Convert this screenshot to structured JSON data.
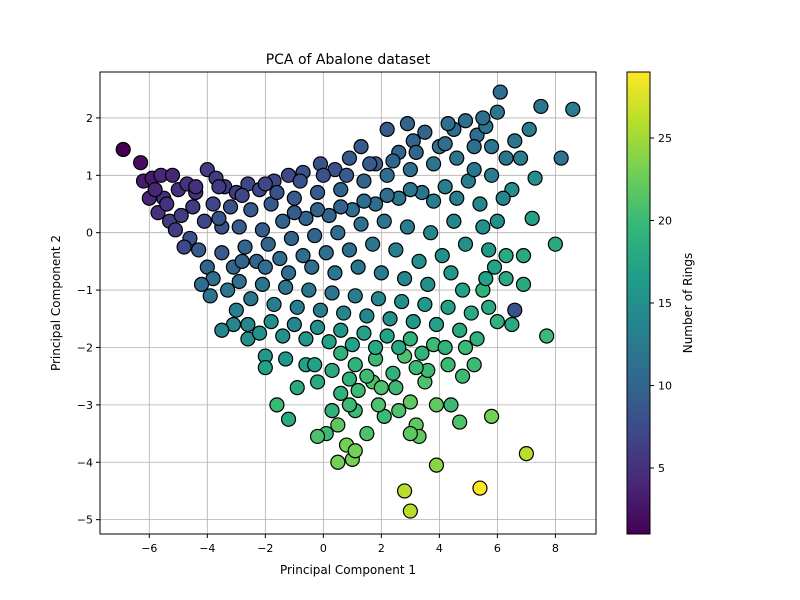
{
  "chart_data": {
    "type": "scatter",
    "title": "PCA of Abalone dataset",
    "xlabel": "Principal Component 1",
    "ylabel": "Principal Component 2",
    "xlim": [
      -7.7,
      9.4
    ],
    "ylim": [
      -5.25,
      2.8
    ],
    "xticks": [
      -6,
      -4,
      -2,
      0,
      2,
      4,
      6,
      8
    ],
    "yticks": [
      -5,
      -4,
      -3,
      -2,
      -1,
      0,
      1,
      2
    ],
    "grid": true,
    "colorbar": {
      "label": "Number of Rings",
      "range": [
        1,
        29
      ],
      "ticks": [
        5,
        10,
        15,
        20,
        25
      ],
      "colormap": "viridis"
    },
    "marker_edge_color": "#000000",
    "points": [
      {
        "x": -6.9,
        "y": 1.45,
        "c": 1
      },
      {
        "x": -6.3,
        "y": 1.22,
        "c": 2
      },
      {
        "x": -6.2,
        "y": 0.9,
        "c": 3
      },
      {
        "x": -5.9,
        "y": 0.95,
        "c": 3
      },
      {
        "x": -5.6,
        "y": 1.0,
        "c": 4
      },
      {
        "x": -5.2,
        "y": 1.0,
        "c": 4
      },
      {
        "x": -5.5,
        "y": 0.6,
        "c": 5
      },
      {
        "x": -5.0,
        "y": 0.75,
        "c": 5
      },
      {
        "x": -4.7,
        "y": 0.85,
        "c": 5
      },
      {
        "x": -4.4,
        "y": 0.7,
        "c": 5
      },
      {
        "x": -4.0,
        "y": 1.1,
        "c": 6
      },
      {
        "x": -3.7,
        "y": 0.95,
        "c": 6
      },
      {
        "x": -3.4,
        "y": 0.8,
        "c": 6
      },
      {
        "x": -3.0,
        "y": 0.7,
        "c": 6
      },
      {
        "x": -2.6,
        "y": 0.85,
        "c": 7
      },
      {
        "x": -2.2,
        "y": 0.75,
        "c": 7
      },
      {
        "x": -1.7,
        "y": 0.9,
        "c": 7
      },
      {
        "x": -1.2,
        "y": 1.0,
        "c": 7
      },
      {
        "x": -0.7,
        "y": 1.05,
        "c": 8
      },
      {
        "x": -0.1,
        "y": 1.2,
        "c": 8
      },
      {
        "x": 0.4,
        "y": 1.1,
        "c": 8
      },
      {
        "x": 0.9,
        "y": 1.3,
        "c": 9
      },
      {
        "x": 1.3,
        "y": 1.5,
        "c": 9
      },
      {
        "x": 1.8,
        "y": 1.2,
        "c": 9
      },
      {
        "x": 2.2,
        "y": 1.8,
        "c": 9
      },
      {
        "x": 2.6,
        "y": 1.4,
        "c": 10
      },
      {
        "x": 3.1,
        "y": 1.6,
        "c": 10
      },
      {
        "x": 3.5,
        "y": 1.75,
        "c": 10
      },
      {
        "x": 4.0,
        "y": 1.5,
        "c": 11
      },
      {
        "x": 4.5,
        "y": 1.8,
        "c": 11
      },
      {
        "x": 4.9,
        "y": 1.95,
        "c": 11
      },
      {
        "x": 5.3,
        "y": 1.7,
        "c": 11
      },
      {
        "x": 5.6,
        "y": 1.85,
        "c": 12
      },
      {
        "x": 6.0,
        "y": 2.1,
        "c": 12
      },
      {
        "x": 6.1,
        "y": 2.45,
        "c": 11
      },
      {
        "x": 7.1,
        "y": 1.8,
        "c": 13
      },
      {
        "x": 7.5,
        "y": 2.2,
        "c": 12
      },
      {
        "x": 8.6,
        "y": 2.15,
        "c": 13
      },
      {
        "x": 8.2,
        "y": 1.3,
        "c": 12
      },
      {
        "x": 6.8,
        "y": 1.3,
        "c": 13
      },
      {
        "x": 7.3,
        "y": 0.95,
        "c": 15
      },
      {
        "x": 6.5,
        "y": 0.75,
        "c": 15
      },
      {
        "x": 7.2,
        "y": 0.25,
        "c": 17
      },
      {
        "x": 8.0,
        "y": -0.2,
        "c": 18
      },
      {
        "x": 6.3,
        "y": -0.4,
        "c": 18
      },
      {
        "x": 6.9,
        "y": -0.4,
        "c": 18
      },
      {
        "x": 6.3,
        "y": -0.8,
        "c": 18
      },
      {
        "x": 6.9,
        "y": -0.9,
        "c": 18
      },
      {
        "x": 6.6,
        "y": -1.35,
        "c": 8
      },
      {
        "x": 6.5,
        "y": -1.6,
        "c": 18
      },
      {
        "x": 7.7,
        "y": -1.8,
        "c": 20
      },
      {
        "x": 6.0,
        "y": -1.55,
        "c": 19
      },
      {
        "x": 5.5,
        "y": -1.0,
        "c": 19
      },
      {
        "x": 5.7,
        "y": -1.3,
        "c": 18
      },
      {
        "x": 5.3,
        "y": -1.85,
        "c": 19
      },
      {
        "x": 5.2,
        "y": -2.3,
        "c": 20
      },
      {
        "x": 4.9,
        "y": -2.0,
        "c": 20
      },
      {
        "x": 4.8,
        "y": -2.5,
        "c": 20
      },
      {
        "x": 4.3,
        "y": -2.3,
        "c": 20
      },
      {
        "x": 4.4,
        "y": -3.0,
        "c": 20
      },
      {
        "x": 4.7,
        "y": -3.3,
        "c": 21
      },
      {
        "x": 3.9,
        "y": -3.0,
        "c": 22
      },
      {
        "x": 3.5,
        "y": -2.6,
        "c": 21
      },
      {
        "x": 3.0,
        "y": -2.95,
        "c": 22
      },
      {
        "x": 3.2,
        "y": -3.35,
        "c": 22
      },
      {
        "x": 3.3,
        "y": -3.55,
        "c": 22
      },
      {
        "x": 3.0,
        "y": -3.5,
        "c": 22
      },
      {
        "x": 3.9,
        "y": -4.05,
        "c": 24
      },
      {
        "x": 5.8,
        "y": -3.2,
        "c": 23
      },
      {
        "x": 7.0,
        "y": -3.85,
        "c": 26
      },
      {
        "x": 5.4,
        "y": -4.45,
        "c": 29
      },
      {
        "x": 2.8,
        "y": -4.5,
        "c": 26
      },
      {
        "x": 3.0,
        "y": -4.85,
        "c": 26
      },
      {
        "x": 1.0,
        "y": -3.95,
        "c": 23
      },
      {
        "x": 0.5,
        "y": -4.0,
        "c": 23
      },
      {
        "x": 0.8,
        "y": -3.7,
        "c": 23
      },
      {
        "x": 1.1,
        "y": -3.8,
        "c": 23
      },
      {
        "x": 0.5,
        "y": -3.35,
        "c": 22
      },
      {
        "x": 0.1,
        "y": -3.5,
        "c": 20
      },
      {
        "x": -0.2,
        "y": -3.55,
        "c": 21
      },
      {
        "x": -1.2,
        "y": -3.25,
        "c": 18
      },
      {
        "x": -1.6,
        "y": -3.0,
        "c": 20
      },
      {
        "x": 0.3,
        "y": -3.1,
        "c": 19
      },
      {
        "x": 1.1,
        "y": -3.1,
        "c": 20
      },
      {
        "x": 1.5,
        "y": -3.5,
        "c": 21
      },
      {
        "x": 2.1,
        "y": -3.2,
        "c": 20
      },
      {
        "x": 0.6,
        "y": -2.8,
        "c": 19
      },
      {
        "x": 1.7,
        "y": -2.6,
        "c": 21
      },
      {
        "x": 2.5,
        "y": -2.7,
        "c": 20
      },
      {
        "x": 2.8,
        "y": -2.15,
        "c": 21
      },
      {
        "x": 1.8,
        "y": -2.2,
        "c": 20
      },
      {
        "x": 1.1,
        "y": -2.3,
        "c": 19
      },
      {
        "x": 0.6,
        "y": -2.1,
        "c": 19
      },
      {
        "x": -0.2,
        "y": -2.6,
        "c": 18
      },
      {
        "x": -0.6,
        "y": -2.3,
        "c": 17
      },
      {
        "x": -0.9,
        "y": -2.7,
        "c": 18
      },
      {
        "x": -1.3,
        "y": -2.2,
        "c": 16
      },
      {
        "x": -2.0,
        "y": -2.15,
        "c": 16
      },
      {
        "x": -2.0,
        "y": -2.35,
        "c": 17
      },
      {
        "x": -2.6,
        "y": -1.85,
        "c": 15
      },
      {
        "x": -3.1,
        "y": -1.6,
        "c": 14
      },
      {
        "x": -3.5,
        "y": -1.7,
        "c": 14
      },
      {
        "x": -3.9,
        "y": -1.1,
        "c": 12
      },
      {
        "x": -4.0,
        "y": -0.6,
        "c": 10
      },
      {
        "x": -4.3,
        "y": -0.3,
        "c": 9
      },
      {
        "x": -4.6,
        "y": -0.1,
        "c": 8
      },
      {
        "x": -5.3,
        "y": 0.2,
        "c": 6
      },
      {
        "x": -5.7,
        "y": 0.35,
        "c": 5
      },
      {
        "x": -6.0,
        "y": 0.6,
        "c": 4
      },
      {
        "x": -4.9,
        "y": 0.3,
        "c": 6
      },
      {
        "x": -4.5,
        "y": 0.45,
        "c": 6
      },
      {
        "x": -4.1,
        "y": 0.2,
        "c": 7
      },
      {
        "x": -3.8,
        "y": 0.5,
        "c": 7
      },
      {
        "x": -3.5,
        "y": 0.1,
        "c": 8
      },
      {
        "x": -3.2,
        "y": 0.45,
        "c": 8
      },
      {
        "x": -2.9,
        "y": 0.1,
        "c": 9
      },
      {
        "x": -2.5,
        "y": 0.4,
        "c": 9
      },
      {
        "x": -2.1,
        "y": 0.05,
        "c": 9
      },
      {
        "x": -1.8,
        "y": 0.5,
        "c": 9
      },
      {
        "x": -1.4,
        "y": 0.2,
        "c": 10
      },
      {
        "x": -1.0,
        "y": 0.6,
        "c": 9
      },
      {
        "x": -0.6,
        "y": 0.25,
        "c": 10
      },
      {
        "x": -0.2,
        "y": 0.7,
        "c": 9
      },
      {
        "x": 0.2,
        "y": 0.3,
        "c": 10
      },
      {
        "x": 0.6,
        "y": 0.75,
        "c": 10
      },
      {
        "x": 1.0,
        "y": 0.4,
        "c": 11
      },
      {
        "x": 1.4,
        "y": 0.9,
        "c": 10
      },
      {
        "x": 1.8,
        "y": 0.5,
        "c": 11
      },
      {
        "x": 2.2,
        "y": 1.0,
        "c": 11
      },
      {
        "x": 2.6,
        "y": 0.6,
        "c": 12
      },
      {
        "x": 3.0,
        "y": 1.1,
        "c": 11
      },
      {
        "x": 3.4,
        "y": 0.7,
        "c": 12
      },
      {
        "x": 3.8,
        "y": 1.2,
        "c": 12
      },
      {
        "x": 4.2,
        "y": 0.8,
        "c": 13
      },
      {
        "x": 4.6,
        "y": 1.3,
        "c": 12
      },
      {
        "x": 5.0,
        "y": 0.9,
        "c": 13
      },
      {
        "x": 5.4,
        "y": 0.5,
        "c": 14
      },
      {
        "x": 5.8,
        "y": 1.0,
        "c": 13
      },
      {
        "x": 6.2,
        "y": 0.6,
        "c": 14
      },
      {
        "x": 5.5,
        "y": 0.1,
        "c": 15
      },
      {
        "x": 5.7,
        "y": -0.3,
        "c": 16
      },
      {
        "x": 5.9,
        "y": -0.6,
        "c": 17
      },
      {
        "x": 4.9,
        "y": -0.2,
        "c": 15
      },
      {
        "x": 4.5,
        "y": 0.2,
        "c": 14
      },
      {
        "x": 4.1,
        "y": -0.4,
        "c": 15
      },
      {
        "x": 3.7,
        "y": 0.0,
        "c": 14
      },
      {
        "x": 3.3,
        "y": -0.5,
        "c": 15
      },
      {
        "x": 2.9,
        "y": 0.1,
        "c": 13
      },
      {
        "x": 2.5,
        "y": -0.3,
        "c": 13
      },
      {
        "x": 2.1,
        "y": 0.2,
        "c": 12
      },
      {
        "x": 1.7,
        "y": -0.2,
        "c": 12
      },
      {
        "x": 1.3,
        "y": 0.15,
        "c": 11
      },
      {
        "x": 0.9,
        "y": -0.3,
        "c": 11
      },
      {
        "x": 0.5,
        "y": 0.0,
        "c": 11
      },
      {
        "x": 0.1,
        "y": -0.35,
        "c": 11
      },
      {
        "x": -0.3,
        "y": -0.05,
        "c": 10
      },
      {
        "x": -0.7,
        "y": -0.4,
        "c": 11
      },
      {
        "x": -1.1,
        "y": -0.1,
        "c": 10
      },
      {
        "x": -1.5,
        "y": -0.45,
        "c": 11
      },
      {
        "x": -1.9,
        "y": -0.2,
        "c": 10
      },
      {
        "x": -2.3,
        "y": -0.5,
        "c": 10
      },
      {
        "x": -2.7,
        "y": -0.25,
        "c": 10
      },
      {
        "x": -3.1,
        "y": -0.6,
        "c": 10
      },
      {
        "x": -3.5,
        "y": -0.35,
        "c": 9
      },
      {
        "x": -3.8,
        "y": -0.8,
        "c": 11
      },
      {
        "x": -3.3,
        "y": -1.0,
        "c": 12
      },
      {
        "x": -2.9,
        "y": -0.85,
        "c": 11
      },
      {
        "x": -2.5,
        "y": -1.15,
        "c": 12
      },
      {
        "x": -2.1,
        "y": -0.9,
        "c": 12
      },
      {
        "x": -1.7,
        "y": -1.25,
        "c": 13
      },
      {
        "x": -1.3,
        "y": -0.95,
        "c": 12
      },
      {
        "x": -0.9,
        "y": -1.3,
        "c": 13
      },
      {
        "x": -0.5,
        "y": -1.0,
        "c": 12
      },
      {
        "x": -0.1,
        "y": -1.35,
        "c": 13
      },
      {
        "x": 0.3,
        "y": -1.05,
        "c": 12
      },
      {
        "x": 0.7,
        "y": -1.4,
        "c": 14
      },
      {
        "x": 1.1,
        "y": -1.1,
        "c": 13
      },
      {
        "x": 1.5,
        "y": -1.45,
        "c": 14
      },
      {
        "x": 1.9,
        "y": -1.15,
        "c": 14
      },
      {
        "x": 2.3,
        "y": -1.5,
        "c": 15
      },
      {
        "x": 2.7,
        "y": -1.2,
        "c": 15
      },
      {
        "x": 3.1,
        "y": -1.55,
        "c": 16
      },
      {
        "x": 3.5,
        "y": -1.25,
        "c": 16
      },
      {
        "x": 3.9,
        "y": -1.6,
        "c": 17
      },
      {
        "x": 4.3,
        "y": -1.3,
        "c": 17
      },
      {
        "x": 4.7,
        "y": -1.7,
        "c": 18
      },
      {
        "x": 5.1,
        "y": -1.4,
        "c": 18
      },
      {
        "x": -3.0,
        "y": -1.35,
        "c": 13
      },
      {
        "x": -2.6,
        "y": -1.6,
        "c": 14
      },
      {
        "x": -2.2,
        "y": -1.75,
        "c": 15
      },
      {
        "x": -1.8,
        "y": -1.55,
        "c": 15
      },
      {
        "x": -1.4,
        "y": -1.8,
        "c": 15
      },
      {
        "x": -1.0,
        "y": -1.6,
        "c": 14
      },
      {
        "x": -0.6,
        "y": -1.85,
        "c": 16
      },
      {
        "x": -0.2,
        "y": -1.65,
        "c": 15
      },
      {
        "x": 0.2,
        "y": -1.9,
        "c": 17
      },
      {
        "x": 0.6,
        "y": -1.7,
        "c": 16
      },
      {
        "x": 1.0,
        "y": -1.95,
        "c": 17
      },
      {
        "x": 1.4,
        "y": -1.75,
        "c": 17
      },
      {
        "x": 1.8,
        "y": -2.0,
        "c": 18
      },
      {
        "x": 2.2,
        "y": -1.8,
        "c": 17
      },
      {
        "x": 2.6,
        "y": -2.0,
        "c": 18
      },
      {
        "x": 3.0,
        "y": -1.85,
        "c": 19
      },
      {
        "x": 3.4,
        "y": -2.1,
        "c": 19
      },
      {
        "x": 3.8,
        "y": -1.95,
        "c": 20
      },
      {
        "x": 4.2,
        "y": -2.0,
        "c": 19
      },
      {
        "x": 3.6,
        "y": -2.4,
        "c": 20
      },
      {
        "x": 3.2,
        "y": -2.35,
        "c": 20
      },
      {
        "x": 2.4,
        "y": -2.45,
        "c": 19
      },
      {
        "x": 2.0,
        "y": -2.7,
        "c": 21
      },
      {
        "x": 1.5,
        "y": -2.5,
        "c": 20
      },
      {
        "x": 1.2,
        "y": -2.75,
        "c": 20
      },
      {
        "x": 0.9,
        "y": -2.55,
        "c": 19
      },
      {
        "x": 0.3,
        "y": -2.4,
        "c": 18
      },
      {
        "x": -0.3,
        "y": -2.3,
        "c": 17
      },
      {
        "x": 1.9,
        "y": -3.0,
        "c": 21
      },
      {
        "x": 2.6,
        "y": -3.1,
        "c": 21
      },
      {
        "x": 0.9,
        "y": -3.0,
        "c": 20
      },
      {
        "x": -5.8,
        "y": 0.75,
        "c": 4
      },
      {
        "x": -5.4,
        "y": 0.5,
        "c": 5
      },
      {
        "x": -5.1,
        "y": 0.05,
        "c": 6
      },
      {
        "x": -4.8,
        "y": -0.25,
        "c": 7
      },
      {
        "x": -4.4,
        "y": 0.8,
        "c": 5
      },
      {
        "x": -3.6,
        "y": 0.8,
        "c": 6
      },
      {
        "x": -2.8,
        "y": 0.65,
        "c": 7
      },
      {
        "x": -2.0,
        "y": 0.85,
        "c": 7
      },
      {
        "x": -1.6,
        "y": 0.7,
        "c": 8
      },
      {
        "x": -0.8,
        "y": 0.9,
        "c": 8
      },
      {
        "x": 0.0,
        "y": 1.0,
        "c": 8
      },
      {
        "x": 0.8,
        "y": 1.0,
        "c": 9
      },
      {
        "x": 1.6,
        "y": 1.2,
        "c": 9
      },
      {
        "x": 2.4,
        "y": 1.25,
        "c": 10
      },
      {
        "x": 3.2,
        "y": 1.4,
        "c": 10
      },
      {
        "x": 4.2,
        "y": 1.55,
        "c": 11
      },
      {
        "x": 5.2,
        "y": 1.5,
        "c": 11
      },
      {
        "x": 5.8,
        "y": 1.5,
        "c": 12
      },
      {
        "x": 6.3,
        "y": 1.3,
        "c": 12
      },
      {
        "x": 6.6,
        "y": 1.6,
        "c": 12
      },
      {
        "x": 6.0,
        "y": 0.2,
        "c": 15
      },
      {
        "x": 5.6,
        "y": -0.8,
        "c": 17
      },
      {
        "x": 4.8,
        "y": -1.0,
        "c": 17
      },
      {
        "x": 4.4,
        "y": -0.7,
        "c": 16
      },
      {
        "x": 3.6,
        "y": -0.9,
        "c": 15
      },
      {
        "x": 2.8,
        "y": -0.8,
        "c": 14
      },
      {
        "x": 2.0,
        "y": -0.7,
        "c": 13
      },
      {
        "x": 1.2,
        "y": -0.6,
        "c": 12
      },
      {
        "x": 0.4,
        "y": -0.7,
        "c": 12
      },
      {
        "x": -0.4,
        "y": -0.6,
        "c": 11
      },
      {
        "x": -1.2,
        "y": -0.7,
        "c": 11
      },
      {
        "x": -2.0,
        "y": -0.6,
        "c": 11
      },
      {
        "x": -2.8,
        "y": -0.5,
        "c": 10
      },
      {
        "x": -3.6,
        "y": 0.25,
        "c": 8
      },
      {
        "x": -4.2,
        "y": -0.9,
        "c": 11
      },
      {
        "x": -1.0,
        "y": 0.35,
        "c": 9
      },
      {
        "x": -0.2,
        "y": 0.4,
        "c": 10
      },
      {
        "x": 0.6,
        "y": 0.45,
        "c": 10
      },
      {
        "x": 1.4,
        "y": 0.55,
        "c": 11
      },
      {
        "x": 2.2,
        "y": 0.65,
        "c": 11
      },
      {
        "x": 3.0,
        "y": 0.75,
        "c": 12
      },
      {
        "x": 3.8,
        "y": 0.55,
        "c": 13
      },
      {
        "x": 4.6,
        "y": 0.6,
        "c": 13
      },
      {
        "x": 5.2,
        "y": 1.1,
        "c": 12
      },
      {
        "x": 2.9,
        "y": 1.9,
        "c": 10
      },
      {
        "x": 4.3,
        "y": 1.9,
        "c": 11
      },
      {
        "x": 5.5,
        "y": 2.0,
        "c": 11
      }
    ]
  }
}
